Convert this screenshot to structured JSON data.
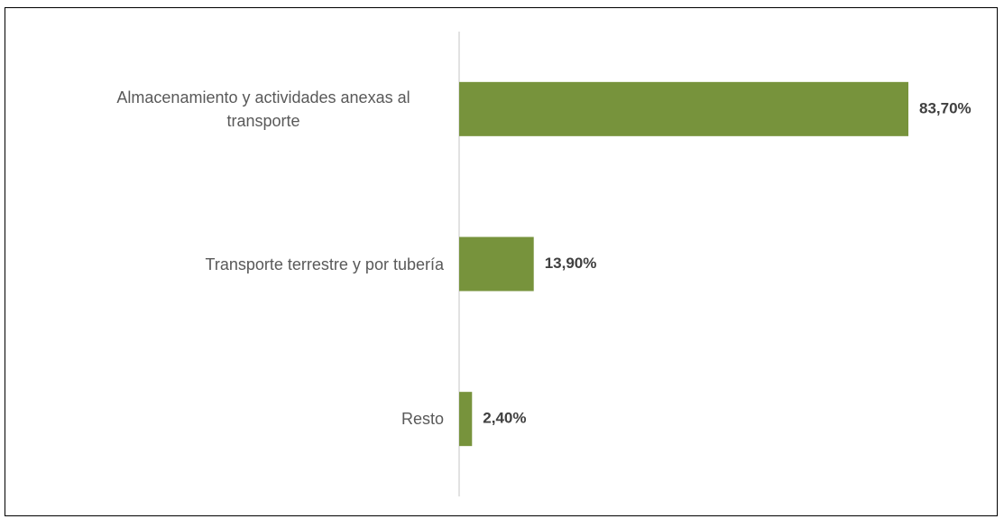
{
  "chart_data": {
    "type": "bar",
    "orientation": "horizontal",
    "categories": [
      "Almacenamiento y actividades anexas al transporte",
      "Transporte terrestre y por tubería",
      "Resto"
    ],
    "values": [
      83.7,
      13.9,
      2.4
    ],
    "value_labels": [
      "83,70%",
      "13,90%",
      "2,40%"
    ],
    "color": "#77933c"
  }
}
